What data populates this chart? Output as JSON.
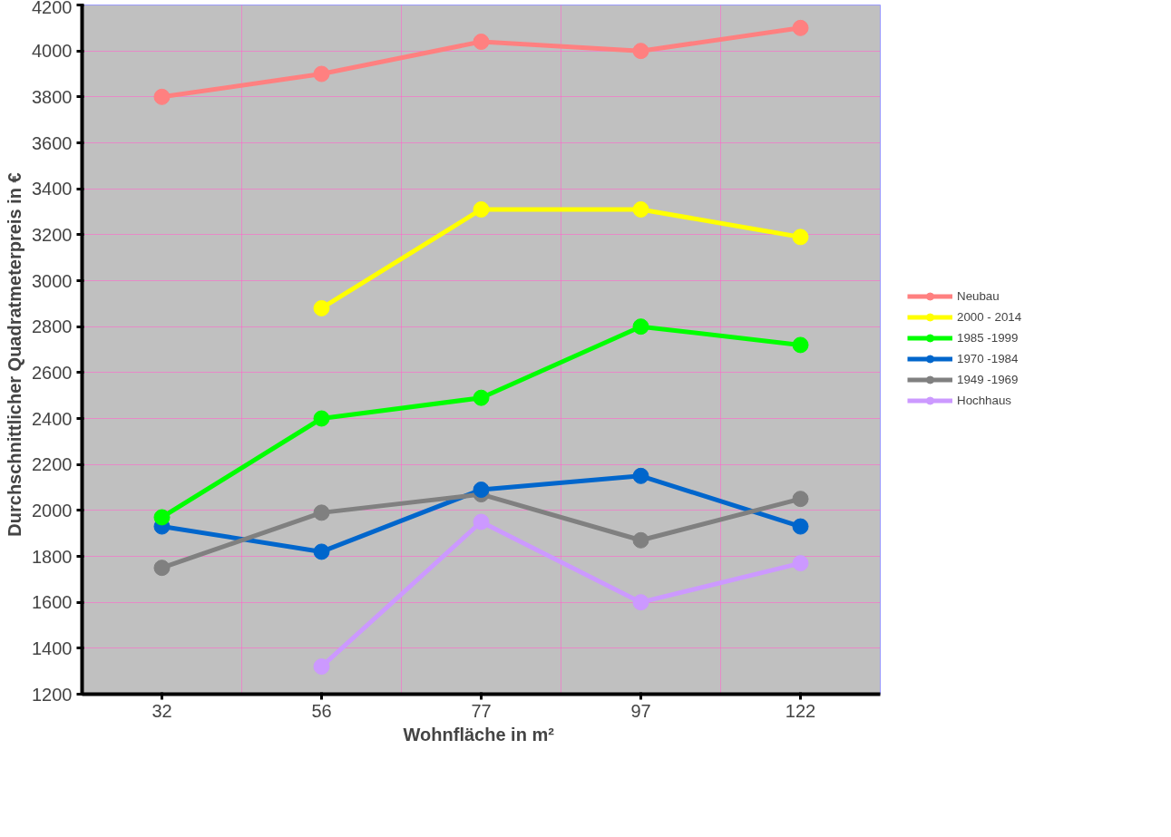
{
  "chart_data": {
    "type": "line",
    "xlabel": "Wohnfläche  in m²",
    "ylabel": "Durchschnittlicher  Quadratmeterpreis  in €",
    "categories": [
      "32",
      "56",
      "77",
      "97",
      "122"
    ],
    "ylim": [
      1200,
      4200
    ],
    "yticks": [
      1200,
      1400,
      1600,
      1800,
      2000,
      2200,
      2400,
      2600,
      2800,
      3000,
      3200,
      3400,
      3600,
      3800,
      4000,
      4200
    ],
    "grid": true,
    "legend": "right",
    "marker": "circle",
    "line_style": "solid",
    "series": [
      {
        "name": "Neubau",
        "color": "#ff8080",
        "values": [
          3800,
          3900,
          4040,
          4000,
          4100
        ]
      },
      {
        "name": "2000 - 2014",
        "color": "#ffff00",
        "values": [
          null,
          2880,
          3310,
          3310,
          3190
        ]
      },
      {
        "name": "1985 -1999",
        "color": "#00ff00",
        "values": [
          1970,
          2400,
          2490,
          2800,
          2720
        ]
      },
      {
        "name": "1970 -1984",
        "color": "#0066cc",
        "values": [
          1930,
          1820,
          2090,
          2150,
          1930
        ]
      },
      {
        "name": "1949 -1969",
        "color": "#808080",
        "values": [
          1750,
          1990,
          2070,
          1870,
          2050
        ]
      },
      {
        "name": "Hochhaus",
        "color": "#cc99ff",
        "values": [
          null,
          1320,
          1950,
          1600,
          1770
        ]
      }
    ]
  }
}
